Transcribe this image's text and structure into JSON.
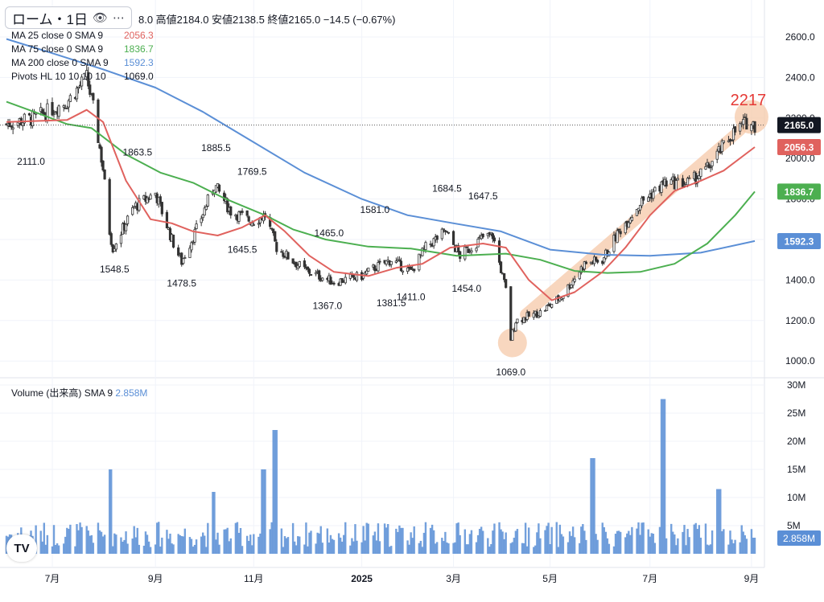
{
  "symbol": {
    "name": "ローム・1日",
    "eye_icon": "eye-icon",
    "more_icon": "more-dots-icon"
  },
  "ohlc_text": "8.0  高値2184.0  安値2138.5  終値2165.0  −14.5 (−0.67%)",
  "indicators": [
    {
      "label": "MA 25 close 0 SMA 9",
      "value": "2056.3",
      "color": "#e0625e"
    },
    {
      "label": "MA 75 close 0 SMA 9",
      "value": "1836.7",
      "color": "#4caf50"
    },
    {
      "label": "MA 200 close 0 SMA 9",
      "value": "1592.3",
      "color": "#5b8fd6"
    },
    {
      "label": "Pivots HL 10 10 10 10",
      "value": "1069.0",
      "color": "#131722"
    }
  ],
  "volume_legend": {
    "label": "Volume (出来高)",
    "sma": "SMA 9",
    "value": "2.858M",
    "color": "#5b8fd6"
  },
  "price_axis": [
    "2600.0",
    "2400.0",
    "2200.0",
    "2000.0",
    "1800.0",
    "1600.0",
    "1400.0",
    "1200.0",
    "1000.0"
  ],
  "volume_axis": [
    "30M",
    "25M",
    "20M",
    "15M",
    "10M",
    "5M"
  ],
  "time_axis": [
    "7月",
    "9月",
    "11月",
    "2025",
    "3月",
    "5月",
    "7月",
    "9月"
  ],
  "price_tags": [
    {
      "text": "2165.0",
      "value": 2165,
      "color": "#131722"
    },
    {
      "text": "2056.3",
      "value": 2056.3,
      "color": "#e0625e"
    },
    {
      "text": "1836.7",
      "value": 1836.7,
      "color": "#4caf50"
    },
    {
      "text": "1592.3",
      "value": 1592.3,
      "color": "#5b8fd6"
    }
  ],
  "volume_tag": {
    "text": "2.858M",
    "color": "#5b8fd6"
  },
  "annotation": {
    "text": "2217",
    "color": "#e53935"
  },
  "logo_text": "TV",
  "chart_data": {
    "type": "candlestick",
    "x_range": [
      "2024-06",
      "2025-09"
    ],
    "y_range": [
      950,
      2650
    ],
    "volume_range_millions": [
      0,
      30
    ],
    "last_close": 2165.0,
    "pivot_labels": [
      {
        "text": "2111.0",
        "value": 2111.0,
        "kind": "low"
      },
      {
        "text": "1548.5",
        "value": 1548.5,
        "kind": "low"
      },
      {
        "text": "1863.5",
        "value": 1863.5,
        "kind": "high"
      },
      {
        "text": "1478.5",
        "value": 1478.5,
        "kind": "low"
      },
      {
        "text": "1885.5",
        "value": 1885.5,
        "kind": "high"
      },
      {
        "text": "1769.5",
        "value": 1769.5,
        "kind": "high"
      },
      {
        "text": "1645.5",
        "value": 1645.5,
        "kind": "low"
      },
      {
        "text": "1465.0",
        "value": 1465.0,
        "kind": "high"
      },
      {
        "text": "1581.0",
        "value": 1581.0,
        "kind": "high"
      },
      {
        "text": "1367.0",
        "value": 1367.0,
        "kind": "low"
      },
      {
        "text": "1381.5",
        "value": 1381.5,
        "kind": "low"
      },
      {
        "text": "1411.0",
        "value": 1411.0,
        "kind": "low"
      },
      {
        "text": "1684.5",
        "value": 1684.5,
        "kind": "high"
      },
      {
        "text": "1647.5",
        "value": 1647.5,
        "kind": "high"
      },
      {
        "text": "1454.0",
        "value": 1454.0,
        "kind": "low"
      },
      {
        "text": "1069.0",
        "value": 1069.0,
        "kind": "low"
      }
    ],
    "close_path": [
      [
        "2024-06-03",
        2170
      ],
      [
        "2024-06-20",
        2200
      ],
      [
        "2024-07-10",
        2280
      ],
      [
        "2024-07-22",
        2400
      ],
      [
        "2024-07-26",
        2250
      ],
      [
        "2024-08-01",
        1950
      ],
      [
        "2024-08-05",
        1640
      ],
      [
        "2024-08-07",
        1560
      ],
      [
        "2024-08-20",
        1760
      ],
      [
        "2024-09-02",
        1830
      ],
      [
        "2024-09-12",
        1600
      ],
      [
        "2024-09-18",
        1490
      ],
      [
        "2024-09-27",
        1650
      ],
      [
        "2024-10-08",
        1870
      ],
      [
        "2024-10-18",
        1740
      ],
      [
        "2024-10-31",
        1690
      ],
      [
        "2024-11-08",
        1720
      ],
      [
        "2024-11-15",
        1560
      ],
      [
        "2024-12-02",
        1450
      ],
      [
        "2024-12-20",
        1390
      ],
      [
        "2025-01-06",
        1420
      ],
      [
        "2025-01-14",
        1460
      ],
      [
        "2025-01-24",
        1500
      ],
      [
        "2025-02-05",
        1440
      ],
      [
        "2025-02-14",
        1560
      ],
      [
        "2025-02-26",
        1640
      ],
      [
        "2025-03-07",
        1520
      ],
      [
        "2025-03-21",
        1610
      ],
      [
        "2025-03-27",
        1620
      ],
      [
        "2025-04-04",
        1350
      ],
      [
        "2025-04-07",
        1110
      ],
      [
        "2025-04-10",
        1200
      ],
      [
        "2025-04-25",
        1240
      ],
      [
        "2025-05-08",
        1320
      ],
      [
        "2025-05-22",
        1480
      ],
      [
        "2025-06-02",
        1500
      ],
      [
        "2025-06-12",
        1640
      ],
      [
        "2025-06-25",
        1780
      ],
      [
        "2025-07-10",
        1880
      ],
      [
        "2025-07-25",
        1880
      ],
      [
        "2025-08-05",
        1950
      ],
      [
        "2025-08-20",
        2120
      ],
      [
        "2025-08-29",
        2180
      ],
      [
        "2025-09-03",
        2165
      ]
    ],
    "ma25": [
      [
        "2024-06-03",
        2180
      ],
      [
        "2024-07-10",
        2190
      ],
      [
        "2024-07-22",
        2240
      ],
      [
        "2024-08-01",
        2180
      ],
      [
        "2024-08-15",
        1890
      ],
      [
        "2024-08-30",
        1700
      ],
      [
        "2024-09-12",
        1680
      ],
      [
        "2024-09-25",
        1640
      ],
      [
        "2024-10-10",
        1620
      ],
      [
        "2024-10-25",
        1660
      ],
      [
        "2024-11-08",
        1720
      ],
      [
        "2024-11-20",
        1640
      ],
      [
        "2024-12-05",
        1520
      ],
      [
        "2024-12-20",
        1440
      ],
      [
        "2025-01-10",
        1420
      ],
      [
        "2025-01-27",
        1460
      ],
      [
        "2025-02-12",
        1480
      ],
      [
        "2025-03-01",
        1560
      ],
      [
        "2025-03-21",
        1580
      ],
      [
        "2025-04-04",
        1560
      ],
      [
        "2025-04-18",
        1400
      ],
      [
        "2025-05-02",
        1300
      ],
      [
        "2025-05-16",
        1340
      ],
      [
        "2025-06-02",
        1440
      ],
      [
        "2025-06-16",
        1560
      ],
      [
        "2025-07-01",
        1720
      ],
      [
        "2025-07-16",
        1840
      ],
      [
        "2025-08-01",
        1890
      ],
      [
        "2025-08-15",
        1940
      ],
      [
        "2025-09-03",
        2056.3
      ]
    ],
    "ma75": [
      [
        "2024-06-03",
        2280
      ],
      [
        "2024-06-20",
        2230
      ],
      [
        "2024-07-10",
        2170
      ],
      [
        "2024-07-25",
        2150
      ],
      [
        "2024-08-15",
        2020
      ],
      [
        "2024-09-05",
        1930
      ],
      [
        "2024-09-25",
        1880
      ],
      [
        "2024-10-15",
        1800
      ],
      [
        "2024-11-08",
        1720
      ],
      [
        "2024-11-25",
        1650
      ],
      [
        "2024-12-15",
        1600
      ],
      [
        "2025-01-10",
        1565
      ],
      [
        "2025-02-05",
        1555
      ],
      [
        "2025-03-05",
        1520
      ],
      [
        "2025-04-04",
        1530
      ],
      [
        "2025-04-25",
        1500
      ],
      [
        "2025-05-16",
        1445
      ],
      [
        "2025-06-05",
        1435
      ],
      [
        "2025-06-25",
        1440
      ],
      [
        "2025-07-16",
        1480
      ],
      [
        "2025-08-05",
        1580
      ],
      [
        "2025-08-22",
        1720
      ],
      [
        "2025-09-03",
        1836.7
      ]
    ],
    "ma200": [
      [
        "2024-06-03",
        2590
      ],
      [
        "2024-07-01",
        2520
      ],
      [
        "2024-08-01",
        2440
      ],
      [
        "2024-09-02",
        2350
      ],
      [
        "2024-10-01",
        2230
      ],
      [
        "2024-11-01",
        2080
      ],
      [
        "2024-12-02",
        1930
      ],
      [
        "2025-01-06",
        1800
      ],
      [
        "2025-02-03",
        1720
      ],
      [
        "2025-03-03",
        1680
      ],
      [
        "2025-04-01",
        1640
      ],
      [
        "2025-05-01",
        1550
      ],
      [
        "2025-06-02",
        1525
      ],
      [
        "2025-07-01",
        1520
      ],
      [
        "2025-08-01",
        1535
      ],
      [
        "2025-09-03",
        1592.3
      ]
    ],
    "volume_spikes_millions": [
      [
        "2024-08-05",
        15
      ],
      [
        "2024-10-07",
        11
      ],
      [
        "2024-11-07",
        15
      ],
      [
        "2024-11-14",
        22
      ],
      [
        "2025-05-27",
        17
      ],
      [
        "2025-07-09",
        27.5
      ],
      [
        "2025-08-12",
        11.5
      ],
      [
        "2025-09-03",
        2.858
      ]
    ],
    "xlabel": "",
    "ylabel": ""
  }
}
